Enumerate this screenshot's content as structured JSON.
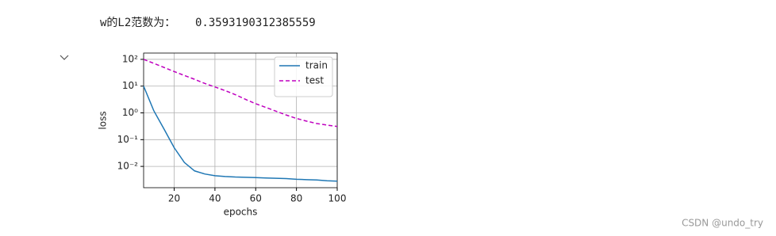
{
  "output": {
    "label": "w的L2范数为：",
    "value": 0.3593190312385559
  },
  "watermark": "CSDN @undo_try",
  "chart_data": {
    "type": "line",
    "xlabel": "epochs",
    "ylabel": "loss",
    "x": [
      5,
      10,
      15,
      20,
      25,
      30,
      35,
      40,
      45,
      50,
      55,
      60,
      65,
      70,
      75,
      80,
      85,
      90,
      95,
      100
    ],
    "series": [
      {
        "name": "train",
        "color": "#1f77b4",
        "dash": false,
        "values": [
          10,
          1.2,
          0.25,
          0.05,
          0.014,
          0.0068,
          0.0052,
          0.0045,
          0.0042,
          0.004,
          0.0039,
          0.0038,
          0.0037,
          0.0036,
          0.0035,
          0.0033,
          0.0032,
          0.0031,
          0.0029,
          0.0028
        ]
      },
      {
        "name": "test",
        "color": "#bf00bf",
        "dash": true,
        "values": [
          100,
          71,
          50,
          35,
          25,
          18,
          12.6,
          9.3,
          6.8,
          4.8,
          3.2,
          2.2,
          1.6,
          1.15,
          0.83,
          0.62,
          0.49,
          0.4,
          0.35,
          0.31
        ]
      }
    ],
    "xlim": [
      5,
      100
    ],
    "xticks": [
      20,
      40,
      60,
      80,
      100
    ],
    "ylim": [
      0.0016,
      172
    ],
    "log_y": true,
    "yticks": [
      {
        "value": 0.01,
        "label": "10⁻²"
      },
      {
        "value": 0.1,
        "label": "10⁻¹"
      },
      {
        "value": 1,
        "label": "10⁰"
      },
      {
        "value": 10,
        "label": "10¹"
      },
      {
        "value": 100,
        "label": "10²"
      }
    ],
    "grid": true,
    "legend": "upper right"
  }
}
